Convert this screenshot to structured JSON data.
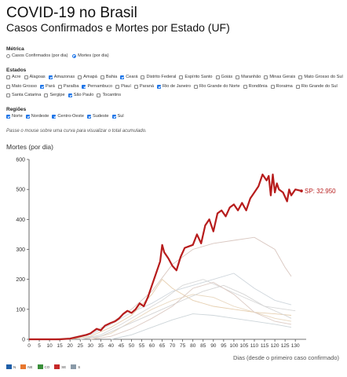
{
  "title": "COVID-19 no Brasil",
  "subtitle": "Casos Confirmados e Mortes por Estado (UF)",
  "metric": {
    "label": "Métrica",
    "options": [
      {
        "label": "Casos Confirmados (por dia)",
        "selected": false
      },
      {
        "label": "Mortes (por dia)",
        "selected": true
      }
    ]
  },
  "states": {
    "label": "Estados",
    "rows": [
      [
        {
          "label": "Acre",
          "checked": false
        },
        {
          "label": "Alagoas",
          "checked": false
        },
        {
          "label": "Amazonas",
          "checked": true
        },
        {
          "label": "Amapá",
          "checked": false
        },
        {
          "label": "Bahia",
          "checked": false
        },
        {
          "label": "Ceará",
          "checked": true
        },
        {
          "label": "Distrito Federal",
          "checked": false
        },
        {
          "label": "Espírito Santo",
          "checked": false
        },
        {
          "label": "Goiás",
          "checked": false
        },
        {
          "label": "Maranhão",
          "checked": false
        },
        {
          "label": "Minas Gerais",
          "checked": false
        },
        {
          "label": "Mato Grosso do Sul",
          "checked": false
        }
      ],
      [
        {
          "label": "Mato Grosso",
          "checked": false
        },
        {
          "label": "Pará",
          "checked": true
        },
        {
          "label": "Paraíba",
          "checked": false
        },
        {
          "label": "Pernambuco",
          "checked": true
        },
        {
          "label": "Piauí",
          "checked": false
        },
        {
          "label": "Paraná",
          "checked": false
        },
        {
          "label": "Rio de Janeiro",
          "checked": true
        },
        {
          "label": "Rio Grande do Norte",
          "checked": false
        },
        {
          "label": "Rondônia",
          "checked": false
        },
        {
          "label": "Roraima",
          "checked": false
        },
        {
          "label": "Rio Grande do Sul",
          "checked": false
        }
      ],
      [
        {
          "label": "Santa Catarina",
          "checked": false
        },
        {
          "label": "Sergipe",
          "checked": false
        },
        {
          "label": "São Paulo",
          "checked": true
        },
        {
          "label": "Tocantins",
          "checked": false
        }
      ]
    ]
  },
  "regions": {
    "label": "Regiões",
    "options": [
      {
        "label": "Norte",
        "checked": true
      },
      {
        "label": "Nordeste",
        "checked": true
      },
      {
        "label": "Centro-Oeste",
        "checked": true
      },
      {
        "label": "Sudeste",
        "checked": true
      },
      {
        "label": "Sul",
        "checked": true
      }
    ]
  },
  "hint": "Passe o mouse sobre uma curva para visualizar o total acumulado.",
  "legend": [
    {
      "label": "N",
      "color": "#1f5fa8"
    },
    {
      "label": "NE",
      "color": "#e8772e"
    },
    {
      "label": "CO",
      "color": "#3a8f3a"
    },
    {
      "label": "SE",
      "color": "#c62828"
    },
    {
      "label": "S",
      "color": "#8a9aa8"
    }
  ],
  "colors": {
    "highlight": "#b71c1c",
    "faint": "#c8c8c8",
    "axis": "#444444"
  },
  "chart_data": {
    "type": "line",
    "ylabel": "Mortes (por dia)",
    "xlabel": "Dias (desde o primeiro caso confirmado)",
    "xlim": [
      0,
      133
    ],
    "ylim": [
      0,
      600
    ],
    "xticks": [
      0,
      5,
      10,
      15,
      20,
      25,
      30,
      35,
      40,
      45,
      50,
      55,
      60,
      65,
      70,
      75,
      80,
      85,
      90,
      95,
      100,
      105,
      110,
      115,
      120,
      125,
      130
    ],
    "yticks": [
      0,
      100,
      200,
      300,
      400,
      500,
      600
    ],
    "highlight": {
      "name": "SP",
      "label": "SP: 32.950",
      "x": [
        0,
        15,
        20,
        25,
        28,
        30,
        33,
        35,
        37,
        40,
        42,
        44,
        46,
        48,
        50,
        52,
        54,
        56,
        58,
        60,
        62,
        64,
        65,
        66,
        68,
        70,
        72,
        74,
        76,
        78,
        80,
        82,
        84,
        86,
        88,
        90,
        92,
        94,
        96,
        98,
        100,
        102,
        104,
        106,
        108,
        110,
        112,
        114,
        116,
        117,
        118,
        119,
        120,
        121,
        122,
        124,
        126,
        127,
        128,
        130,
        133
      ],
      "y": [
        0,
        0,
        2,
        10,
        15,
        20,
        35,
        30,
        45,
        55,
        60,
        70,
        85,
        95,
        88,
        100,
        120,
        110,
        140,
        180,
        220,
        260,
        315,
        290,
        270,
        245,
        230,
        275,
        305,
        310,
        315,
        350,
        320,
        380,
        400,
        360,
        420,
        430,
        410,
        440,
        450,
        430,
        455,
        430,
        470,
        490,
        510,
        550,
        530,
        545,
        480,
        550,
        490,
        520,
        500,
        490,
        460,
        500,
        480,
        500,
        495
      ]
    },
    "others": [
      {
        "x": [
          10,
          20,
          30,
          40,
          50,
          60,
          70,
          80,
          90,
          100,
          110,
          120,
          125,
          128
        ],
        "y": [
          0,
          5,
          20,
          55,
          100,
          160,
          250,
          300,
          320,
          330,
          340,
          300,
          240,
          210
        ]
      },
      {
        "x": [
          20,
          30,
          40,
          50,
          60,
          70,
          80,
          90,
          100,
          110,
          120,
          128
        ],
        "y": [
          0,
          15,
          50,
          90,
          120,
          160,
          180,
          200,
          220,
          170,
          130,
          115
        ]
      },
      {
        "x": [
          20,
          30,
          40,
          50,
          60,
          65,
          70,
          80,
          90,
          100,
          110,
          120,
          128
        ],
        "y": [
          0,
          10,
          40,
          80,
          150,
          200,
          170,
          130,
          110,
          100,
          90,
          85,
          80
        ]
      },
      {
        "x": [
          25,
          35,
          45,
          55,
          65,
          75,
          85,
          95,
          105,
          115,
          125,
          130
        ],
        "y": [
          0,
          15,
          50,
          90,
          130,
          180,
          200,
          170,
          140,
          110,
          100,
          95
        ]
      },
      {
        "x": [
          30,
          40,
          50,
          60,
          70,
          80,
          90,
          100,
          110,
          120,
          128
        ],
        "y": [
          0,
          20,
          60,
          100,
          130,
          150,
          140,
          110,
          90,
          70,
          60
        ]
      },
      {
        "x": [
          25,
          35,
          45,
          55,
          65,
          75,
          85,
          95,
          105,
          115,
          125,
          128
        ],
        "y": [
          0,
          10,
          40,
          70,
          100,
          130,
          160,
          180,
          150,
          110,
          80,
          70
        ]
      },
      {
        "x": [
          30,
          40,
          50,
          60,
          70,
          80,
          90,
          100,
          110,
          120,
          128
        ],
        "y": [
          0,
          10,
          35,
          70,
          110,
          170,
          190,
          150,
          90,
          60,
          50
        ]
      },
      {
        "x": [
          40,
          50,
          60,
          70,
          80,
          90,
          100,
          110,
          120,
          128
        ],
        "y": [
          0,
          15,
          40,
          65,
          85,
          80,
          70,
          60,
          50,
          40
        ]
      }
    ]
  }
}
